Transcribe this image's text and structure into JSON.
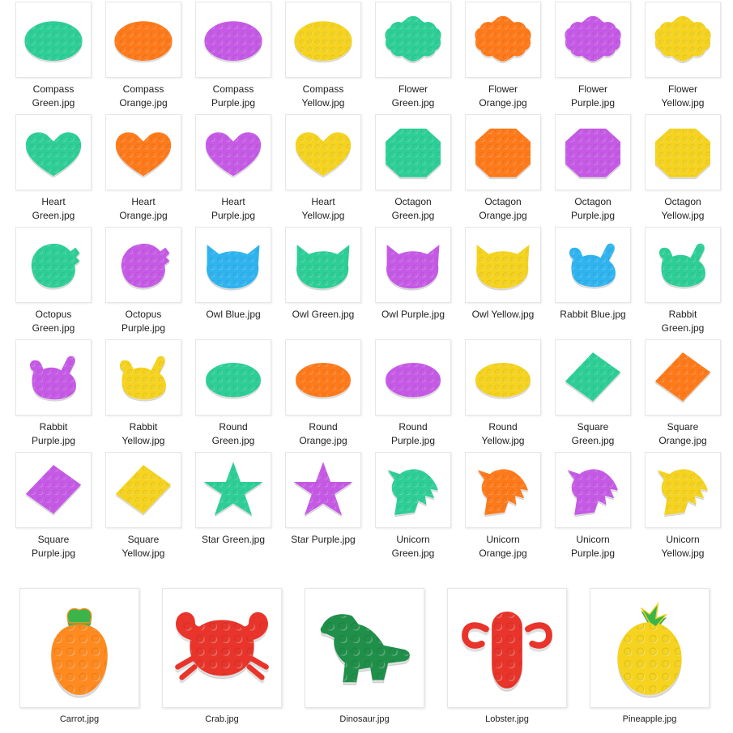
{
  "files": [
    {
      "label": "Compass\nGreen.jpg",
      "shape": "compass",
      "color": "#2dcf97"
    },
    {
      "label": "Compass\nOrange.jpg",
      "shape": "compass",
      "color": "#ff7a1a"
    },
    {
      "label": "Compass\nPurple.jpg",
      "shape": "compass",
      "color": "#c65ae6"
    },
    {
      "label": "Compass\nYellow.jpg",
      "shape": "compass",
      "color": "#f5d31e"
    },
    {
      "label": "Flower\nGreen.jpg",
      "shape": "flower",
      "color": "#2dcf97"
    },
    {
      "label": "Flower\nOrange.jpg",
      "shape": "flower",
      "color": "#ff7a1a"
    },
    {
      "label": "Flower\nPurple.jpg",
      "shape": "flower",
      "color": "#c65ae6"
    },
    {
      "label": "Flower\nYellow.jpg",
      "shape": "flower",
      "color": "#f5d31e"
    },
    {
      "label": "Heart\nGreen.jpg",
      "shape": "heart",
      "color": "#2dcf97"
    },
    {
      "label": "Heart\nOrange.jpg",
      "shape": "heart",
      "color": "#ff7a1a"
    },
    {
      "label": "Heart\nPurple.jpg",
      "shape": "heart",
      "color": "#c65ae6"
    },
    {
      "label": "Heart\nYellow.jpg",
      "shape": "heart",
      "color": "#f5d31e"
    },
    {
      "label": "Octagon\nGreen.jpg",
      "shape": "octagon",
      "color": "#2dcf97"
    },
    {
      "label": "Octagon\nOrange.jpg",
      "shape": "octagon",
      "color": "#ff7a1a"
    },
    {
      "label": "Octagon\nPurple.jpg",
      "shape": "octagon",
      "color": "#c65ae6"
    },
    {
      "label": "Octagon\nYellow.jpg",
      "shape": "octagon",
      "color": "#f5d31e"
    },
    {
      "label": "Octopus\nGreen.jpg",
      "shape": "octopus",
      "color": "#2dcf97"
    },
    {
      "label": "Octopus\nPurple.jpg",
      "shape": "octopus",
      "color": "#c65ae6"
    },
    {
      "label": "Owl Blue.jpg",
      "shape": "owl",
      "color": "#2fb4f0"
    },
    {
      "label": "Owl Green.jpg",
      "shape": "owl",
      "color": "#2dcf97"
    },
    {
      "label": "Owl Purple.jpg",
      "shape": "owl",
      "color": "#c65ae6"
    },
    {
      "label": "Owl Yellow.jpg",
      "shape": "owl",
      "color": "#f5d31e"
    },
    {
      "label": "Rabbit Blue.jpg",
      "shape": "rabbit",
      "color": "#2fb4f0"
    },
    {
      "label": "Rabbit\nGreen.jpg",
      "shape": "rabbit",
      "color": "#2dcf97"
    },
    {
      "label": "Rabbit\nPurple.jpg",
      "shape": "rabbit",
      "color": "#c65ae6"
    },
    {
      "label": "Rabbit\nYellow.jpg",
      "shape": "rabbit",
      "color": "#f5d31e"
    },
    {
      "label": "Round\nGreen.jpg",
      "shape": "round",
      "color": "#2dcf97"
    },
    {
      "label": "Round\nOrange.jpg",
      "shape": "round",
      "color": "#ff7a1a"
    },
    {
      "label": "Round\nPurple.jpg",
      "shape": "round",
      "color": "#c65ae6"
    },
    {
      "label": "Round\nYellow.jpg",
      "shape": "round",
      "color": "#f5d31e"
    },
    {
      "label": "Square\nGreen.jpg",
      "shape": "square",
      "color": "#2dcf97"
    },
    {
      "label": "Square\nOrange.jpg",
      "shape": "square",
      "color": "#ff7a1a"
    },
    {
      "label": "Square\nPurple.jpg",
      "shape": "square",
      "color": "#c65ae6"
    },
    {
      "label": "Square\nYellow.jpg",
      "shape": "square",
      "color": "#f5d31e"
    },
    {
      "label": "Star Green.jpg",
      "shape": "star",
      "color": "#2dcf97"
    },
    {
      "label": "Star Purple.jpg",
      "shape": "star",
      "color": "#c65ae6"
    },
    {
      "label": "Unicorn\nGreen.jpg",
      "shape": "unicorn",
      "color": "#2dcf97"
    },
    {
      "label": "Unicorn\nOrange.jpg",
      "shape": "unicorn",
      "color": "#ff7a1a"
    },
    {
      "label": "Unicorn\nPurple.jpg",
      "shape": "unicorn",
      "color": "#c65ae6"
    },
    {
      "label": "Unicorn\nYellow.jpg",
      "shape": "unicorn",
      "color": "#f5d31e"
    }
  ],
  "large_files": [
    {
      "label": "Carrot.jpg",
      "shape": "carrot",
      "color": "#ff8a1f"
    },
    {
      "label": "Crab.jpg",
      "shape": "crab",
      "color": "#e8342a"
    },
    {
      "label": "Dinosaur.jpg",
      "shape": "dinosaur",
      "color": "#1f8f4a"
    },
    {
      "label": "Lobster.jpg",
      "shape": "lobster",
      "color": "#e8342a"
    },
    {
      "label": "Pineapple.jpg",
      "shape": "pineapple",
      "color": "#f5d31e"
    }
  ]
}
